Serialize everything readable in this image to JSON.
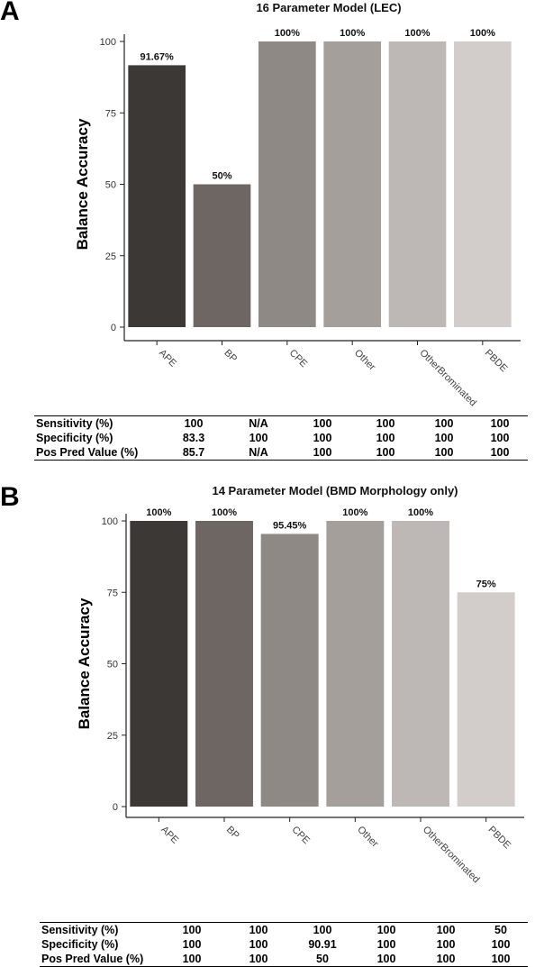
{
  "panels": [
    {
      "letter": "A",
      "chart_data": {
        "type": "bar",
        "title": "16 Parameter Model (LEC)",
        "ylabel": "Balance Accuracy",
        "xlabel": "",
        "categories": [
          "APE",
          "BP",
          "CPE",
          "Other",
          "OtherBrominated",
          "PBDE"
        ],
        "values": [
          91.67,
          50,
          100,
          100,
          100,
          100
        ],
        "data_labels": [
          "91.67%",
          "50%",
          "100%",
          "100%",
          "100%",
          "100%"
        ],
        "colors": [
          "#3b3836",
          "#6e6663",
          "#8f8986",
          "#a59f9c",
          "#bdb8b6",
          "#d2cdcb"
        ],
        "ylim": [
          0,
          100
        ],
        "yticks": [
          0,
          25,
          50,
          75,
          100
        ],
        "grid": false,
        "legend": "none"
      },
      "table": {
        "rows": [
          {
            "label": "Sensitivity (%)",
            "values": [
              "100",
              "N/A",
              "100",
              "100",
              "100",
              "100"
            ]
          },
          {
            "label": "Specificity (%)",
            "values": [
              "83.3",
              "100",
              "100",
              "100",
              "100",
              "100"
            ]
          },
          {
            "label": "Pos Pred Value (%)",
            "values": [
              "85.7",
              "N/A",
              "100",
              "100",
              "100",
              "100"
            ]
          }
        ]
      }
    },
    {
      "letter": "B",
      "chart_data": {
        "type": "bar",
        "title": "14 Parameter Model (BMD Morphology only)",
        "ylabel": "Balance Accuracy",
        "xlabel": "",
        "categories": [
          "APE",
          "BP",
          "CPE",
          "Other",
          "OtherBrominated",
          "PBDE"
        ],
        "values": [
          100,
          100,
          95.45,
          100,
          100,
          75
        ],
        "data_labels": [
          "100%",
          "100%",
          "95.45%",
          "100%",
          "100%",
          "75%"
        ],
        "colors": [
          "#3b3836",
          "#6e6663",
          "#8f8986",
          "#a59f9c",
          "#bdb8b6",
          "#d2cdcb"
        ],
        "ylim": [
          0,
          100
        ],
        "yticks": [
          0,
          25,
          50,
          75,
          100
        ],
        "grid": false,
        "legend": "none"
      },
      "table": {
        "rows": [
          {
            "label": "Sensitivity (%)",
            "values": [
              "100",
              "100",
              "100",
              "100",
              "100",
              "50"
            ]
          },
          {
            "label": "Specificity (%)",
            "values": [
              "100",
              "100",
              "90.91",
              "100",
              "100",
              "100"
            ]
          },
          {
            "label": "Pos Pred Value (%)",
            "values": [
              "100",
              "100",
              "50",
              "100",
              "100",
              "100"
            ]
          }
        ]
      }
    }
  ]
}
